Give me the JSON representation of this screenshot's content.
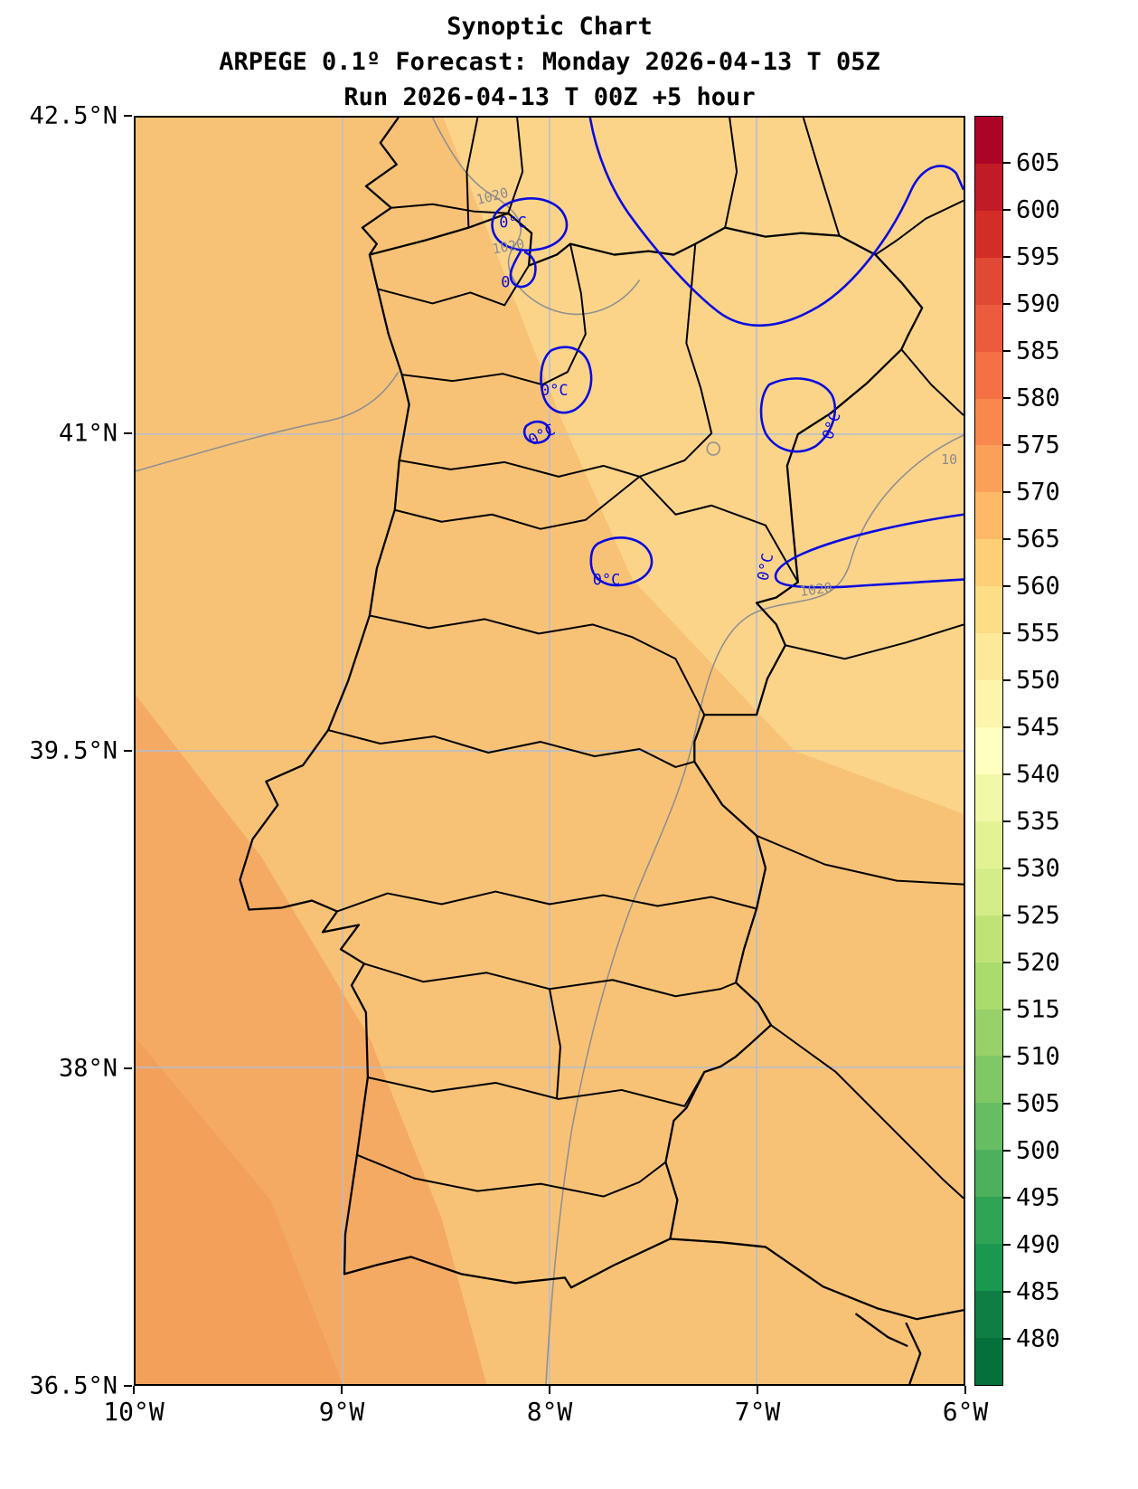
{
  "header": {
    "title": "Synoptic Chart",
    "subtitle": "ARPEGE 0.1º Forecast: Monday 2026-04-13 T 05Z",
    "run_info": "Run 2026-04-13 T 00Z +5 hour"
  },
  "map": {
    "x_axis": {
      "ticks": [
        "10°W",
        "9°W",
        "8°W",
        "7°W",
        "6°W"
      ]
    },
    "y_axis": {
      "ticks": [
        "42.5°N",
        "41°N",
        "39.5°N",
        "38°N",
        "36.5°N"
      ]
    },
    "contour_labels": {
      "zero_isotherm": "0°C",
      "zero_isotherm_short": "0",
      "isobar": "1020",
      "isobar_partial": "10"
    }
  },
  "colorbar": {
    "tick_labels": [
      "605",
      "600",
      "595",
      "590",
      "585",
      "580",
      "575",
      "570",
      "565",
      "560",
      "555",
      "550",
      "545",
      "540",
      "535",
      "530",
      "525",
      "520",
      "515",
      "510",
      "505",
      "500",
      "495",
      "490",
      "485",
      "480"
    ],
    "band_colors_bottom_to_top": [
      "#04703b",
      "#0f7d44",
      "#1a9850",
      "#30a355",
      "#4db05c",
      "#66bd63",
      "#80c866",
      "#98d169",
      "#aadb6d",
      "#c0e378",
      "#d5ed88",
      "#e3f394",
      "#f1f9a9",
      "#ffffbf",
      "#fff4ab",
      "#fee99a",
      "#fedd87",
      "#fecf77",
      "#fdb968",
      "#fba05a",
      "#f8884e",
      "#f57045",
      "#ec5b3d",
      "#e04a35",
      "#d42d27",
      "#c11c26",
      "#ab0426"
    ]
  },
  "chart_data": {
    "type": "heatmap",
    "title": "Synoptic Chart",
    "subtitle": "ARPEGE 0.1º Forecast: Monday 2026-04-13 T 05Z",
    "run": "Run 2026-04-13 T 00Z +5 hour",
    "x_range": [
      "10°W",
      "6°W"
    ],
    "y_range": [
      "36.5°N",
      "42.5°N"
    ],
    "colorbar_scale": {
      "min": 480,
      "max": 605,
      "step": 5
    },
    "overlays": [
      "0°C isotherm contour (blue)",
      "1020 isobar contour (gray)",
      "coastlines and administrative borders (black)"
    ]
  }
}
